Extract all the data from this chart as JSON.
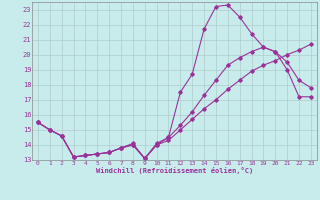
{
  "xlabel": "Windchill (Refroidissement éolien,°C)",
  "bg_color": "#c8ecec",
  "grid_color": "#b0cccc",
  "line_color": "#993399",
  "xlim": [
    -0.5,
    23.5
  ],
  "ylim": [
    13,
    23.5
  ],
  "yticks": [
    13,
    14,
    15,
    16,
    17,
    18,
    19,
    20,
    21,
    22,
    23
  ],
  "xticks": [
    0,
    1,
    2,
    3,
    4,
    5,
    6,
    7,
    8,
    9,
    10,
    11,
    12,
    13,
    14,
    15,
    16,
    17,
    18,
    19,
    20,
    21,
    22,
    23
  ],
  "line1_x": [
    0,
    1,
    2,
    3,
    4,
    5,
    6,
    7,
    8,
    9,
    10,
    11,
    12,
    13,
    14,
    15,
    16,
    17,
    18,
    19,
    20,
    21,
    22,
    23
  ],
  "line1_y": [
    15.5,
    15.0,
    14.6,
    13.2,
    13.3,
    13.4,
    13.5,
    13.8,
    14.1,
    13.1,
    14.1,
    14.5,
    17.5,
    18.7,
    21.7,
    23.2,
    23.3,
    22.5,
    21.4,
    20.5,
    20.2,
    19.0,
    17.2,
    17.2
  ],
  "line2_x": [
    0,
    1,
    2,
    3,
    4,
    5,
    6,
    7,
    8,
    9,
    10,
    11,
    12,
    13,
    14,
    15,
    16,
    17,
    18,
    19,
    20,
    21,
    22,
    23
  ],
  "line2_y": [
    15.5,
    15.0,
    14.6,
    13.2,
    13.3,
    13.4,
    13.5,
    13.8,
    14.0,
    13.1,
    14.0,
    14.5,
    15.3,
    16.2,
    17.3,
    18.3,
    19.3,
    19.8,
    20.2,
    20.5,
    20.2,
    19.5,
    18.3,
    17.8
  ],
  "line3_x": [
    0,
    1,
    2,
    3,
    4,
    5,
    6,
    7,
    8,
    9,
    10,
    11,
    12,
    13,
    14,
    15,
    16,
    17,
    18,
    19,
    20,
    21,
    22,
    23
  ],
  "line3_y": [
    15.5,
    15.0,
    14.6,
    13.2,
    13.3,
    13.4,
    13.5,
    13.8,
    14.0,
    13.1,
    14.0,
    14.3,
    15.0,
    15.7,
    16.4,
    17.0,
    17.7,
    18.3,
    18.9,
    19.3,
    19.6,
    20.0,
    20.3,
    20.7
  ]
}
